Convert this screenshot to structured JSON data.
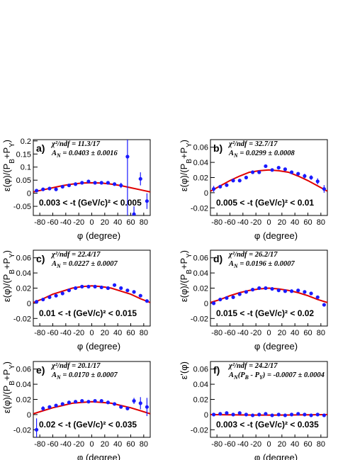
{
  "chart_data": [
    {
      "type": "scatter",
      "panel_label": "a)",
      "chi2_text": "χ²/ndf = 11.3/17",
      "fit_text": [
        "A",
        "N",
        " = 0.0403 ± 0.0016"
      ],
      "range_text": "0.003 < -t (GeV/c)² < 0.005",
      "ylabel": [
        "ε(φ)/(P",
        "B",
        "+P",
        "Y",
        ")"
      ],
      "xlabel": "φ (degree)",
      "xlim": [
        -90,
        90
      ],
      "xticks": [
        -80,
        -60,
        -40,
        -20,
        0,
        20,
        40,
        60,
        80
      ],
      "ylim": [
        -0.085,
        0.205
      ],
      "yticks": [
        -0.05,
        0,
        0.05,
        0.1,
        0.15,
        0.2
      ],
      "series": [
        {
          "color": "#1a1aff",
          "x": [
            -85,
            -75,
            -65,
            -55,
            -45,
            -35,
            -25,
            -15,
            -5,
            5,
            15,
            25,
            35,
            45,
            55,
            65,
            75,
            85
          ],
          "values": [
            0.01,
            0.015,
            0.018,
            0.015,
            0.025,
            0.03,
            0.035,
            0.04,
            0.045,
            0.04,
            0.04,
            0.04,
            0.035,
            0.03,
            0.14,
            -0.08,
            0.055,
            -0.03
          ],
          "errors": [
            0.004,
            0.003,
            0.003,
            0.003,
            0.003,
            0.003,
            0.003,
            0.003,
            0.003,
            0.003,
            0.003,
            0.003,
            0.004,
            0.01,
            0.23,
            0.03,
            0.025,
            0.03
          ]
        }
      ],
      "fit": {
        "color": "#e00000",
        "x": [
          -90,
          -75,
          -60,
          -45,
          -30,
          -15,
          0,
          15,
          30,
          45,
          60,
          75,
          90
        ],
        "values": [
          0.005,
          0.013,
          0.021,
          0.029,
          0.035,
          0.039,
          0.04,
          0.039,
          0.035,
          0.029,
          0.021,
          0.013,
          0.005
        ]
      }
    },
    {
      "type": "scatter",
      "panel_label": "b)",
      "chi2_text": "χ²/ndf = 32.7/17",
      "fit_text": [
        "A",
        "N",
        " = 0.0299 ± 0.0008"
      ],
      "range_text": "0.005 < -t (GeV/c)² < 0.01",
      "ylabel": [
        "ε(φ)/(P",
        "B",
        "+P",
        "Y",
        ")"
      ],
      "xlabel": "φ (degree)",
      "xlim": [
        -90,
        90
      ],
      "xticks": [
        -80,
        -60,
        -40,
        -20,
        0,
        20,
        40,
        60,
        80
      ],
      "ylim": [
        -0.03,
        0.07
      ],
      "yticks": [
        -0.02,
        0,
        0.02,
        0.04,
        0.06
      ],
      "series": [
        {
          "color": "#1a1aff",
          "x": [
            -85,
            -75,
            -65,
            -55,
            -45,
            -35,
            -25,
            -15,
            -5,
            5,
            15,
            25,
            35,
            45,
            55,
            65,
            75,
            85
          ],
          "values": [
            0.005,
            0.008,
            0.01,
            0.016,
            0.016,
            0.02,
            0.027,
            0.027,
            0.035,
            0.03,
            0.033,
            0.031,
            0.027,
            0.025,
            0.022,
            0.02,
            0.015,
            0.005
          ],
          "errors": [
            0.004,
            0.002,
            0.002,
            0.002,
            0.002,
            0.002,
            0.002,
            0.002,
            0.002,
            0.002,
            0.002,
            0.002,
            0.002,
            0.002,
            0.003,
            0.003,
            0.004,
            0.005
          ]
        }
      ],
      "fit": {
        "color": "#e00000",
        "x": [
          -90,
          -75,
          -60,
          -45,
          -30,
          -15,
          0,
          15,
          30,
          45,
          60,
          75,
          90
        ],
        "values": [
          0.002,
          0.009,
          0.016,
          0.022,
          0.027,
          0.029,
          0.03,
          0.029,
          0.027,
          0.022,
          0.016,
          0.009,
          0.002
        ]
      }
    },
    {
      "type": "scatter",
      "panel_label": "c)",
      "chi2_text": "χ²/ndf = 22.4/17",
      "fit_text": [
        "A",
        "N",
        " = 0.0227 ± 0.0007"
      ],
      "range_text": "0.01 < -t (GeV/c)² < 0.015",
      "ylabel": [
        "ε(φ)/(P",
        "B",
        "+P",
        "Y",
        ")"
      ],
      "xlabel": "φ (degree)",
      "xlim": [
        -90,
        90
      ],
      "xticks": [
        -80,
        -60,
        -40,
        -20,
        0,
        20,
        40,
        60,
        80
      ],
      "ylim": [
        -0.03,
        0.07
      ],
      "yticks": [
        -0.02,
        0,
        0.02,
        0.04,
        0.06
      ],
      "series": [
        {
          "color": "#1a1aff",
          "x": [
            -85,
            -75,
            -65,
            -55,
            -45,
            -35,
            -25,
            -15,
            -5,
            5,
            15,
            25,
            35,
            45,
            55,
            65,
            75,
            85
          ],
          "values": [
            0.002,
            0.005,
            0.008,
            0.01,
            0.013,
            0.017,
            0.02,
            0.022,
            0.022,
            0.022,
            0.021,
            0.02,
            0.024,
            0.02,
            0.017,
            0.015,
            0.01,
            0.003
          ],
          "errors": [
            0.002,
            0.0015,
            0.0015,
            0.0015,
            0.0015,
            0.0015,
            0.0015,
            0.0015,
            0.0015,
            0.0015,
            0.0015,
            0.0015,
            0.0015,
            0.0015,
            0.0015,
            0.0015,
            0.0015,
            0.002
          ]
        }
      ],
      "fit": {
        "color": "#e00000",
        "x": [
          -90,
          -75,
          -60,
          -45,
          -30,
          -15,
          0,
          15,
          30,
          45,
          60,
          75,
          90
        ],
        "values": [
          0.001,
          0.006,
          0.012,
          0.016,
          0.02,
          0.022,
          0.023,
          0.022,
          0.02,
          0.016,
          0.012,
          0.006,
          0.001
        ]
      }
    },
    {
      "type": "scatter",
      "panel_label": "d)",
      "chi2_text": "χ²/ndf = 26.2/17",
      "fit_text": [
        "A",
        "N",
        " = 0.0196 ± 0.0007"
      ],
      "range_text": "0.015 < -t (GeV/c)² < 0.02",
      "ylabel": [
        "ε(φ)/(P",
        "B",
        "+P",
        "Y",
        ")"
      ],
      "xlabel": "φ (degree)",
      "xlim": [
        -90,
        90
      ],
      "xticks": [
        -80,
        -60,
        -40,
        -20,
        0,
        20,
        40,
        60,
        80
      ],
      "ylim": [
        -0.03,
        0.07
      ],
      "yticks": [
        -0.02,
        0,
        0.02,
        0.04,
        0.06
      ],
      "series": [
        {
          "color": "#1a1aff",
          "x": [
            -85,
            -75,
            -65,
            -55,
            -45,
            -35,
            -25,
            -15,
            -5,
            5,
            15,
            25,
            35,
            45,
            55,
            65,
            75,
            85
          ],
          "values": [
            0.0,
            0.005,
            0.007,
            0.008,
            0.012,
            0.015,
            0.018,
            0.02,
            0.02,
            0.019,
            0.017,
            0.016,
            0.016,
            0.017,
            0.015,
            0.013,
            0.008,
            -0.002
          ],
          "errors": [
            0.002,
            0.0015,
            0.0015,
            0.0015,
            0.0015,
            0.0015,
            0.0015,
            0.0015,
            0.0015,
            0.0015,
            0.0015,
            0.0015,
            0.0015,
            0.0015,
            0.0015,
            0.0015,
            0.0015,
            0.002
          ]
        }
      ],
      "fit": {
        "color": "#e00000",
        "x": [
          -90,
          -75,
          -60,
          -45,
          -30,
          -15,
          0,
          15,
          30,
          45,
          60,
          75,
          90
        ],
        "values": [
          0.001,
          0.005,
          0.01,
          0.014,
          0.017,
          0.019,
          0.02,
          0.019,
          0.017,
          0.014,
          0.01,
          0.005,
          0.001
        ]
      }
    },
    {
      "type": "scatter",
      "panel_label": "e)",
      "chi2_text": "χ²/ndf = 20.1/17",
      "fit_text": [
        "A",
        "N",
        " = 0.0170 ± 0.0007"
      ],
      "range_text": "0.02 < -t (GeV/c)² < 0.035",
      "ylabel": [
        "ε(φ)/(P",
        "B",
        "+P",
        "Y",
        ")"
      ],
      "xlabel": "φ (degree)",
      "xlim": [
        -90,
        90
      ],
      "xticks": [
        -80,
        -60,
        -40,
        -20,
        0,
        20,
        40,
        60,
        80
      ],
      "ylim": [
        -0.03,
        0.07
      ],
      "yticks": [
        -0.02,
        0,
        0.02,
        0.04,
        0.06
      ],
      "series": [
        {
          "color": "#1a1aff",
          "x": [
            -85,
            -75,
            -65,
            -55,
            -45,
            -35,
            -25,
            -15,
            -5,
            5,
            15,
            25,
            35,
            45,
            55,
            65,
            75,
            85
          ],
          "values": [
            -0.02,
            0.008,
            0.01,
            0.012,
            0.014,
            0.016,
            0.017,
            0.018,
            0.017,
            0.018,
            0.018,
            0.016,
            0.014,
            0.01,
            0.008,
            0.018,
            0.015,
            0.01
          ],
          "errors": [
            0.015,
            0.003,
            0.002,
            0.0015,
            0.0015,
            0.0015,
            0.0015,
            0.0015,
            0.0015,
            0.0015,
            0.0015,
            0.0015,
            0.0015,
            0.002,
            0.002,
            0.004,
            0.008,
            0.012
          ]
        }
      ],
      "fit": {
        "color": "#e00000",
        "x": [
          -90,
          -75,
          -60,
          -45,
          -30,
          -15,
          0,
          15,
          30,
          45,
          60,
          75,
          90
        ],
        "values": [
          0.001,
          0.005,
          0.009,
          0.012,
          0.015,
          0.016,
          0.017,
          0.016,
          0.015,
          0.012,
          0.009,
          0.005,
          0.001
        ]
      }
    },
    {
      "type": "scatter",
      "panel_label": "f)",
      "chi2_text": "χ²/ndf = 24.2/17",
      "fit_text": [
        "A",
        "N",
        "(P",
        "B",
        " - P",
        "Y",
        ") = -0.0007 ± 0.0004"
      ],
      "range_text": "0.003 < -t (GeV/c)² < 0.035",
      "ylabel": [
        "ε'(φ)"
      ],
      "xlabel": "φ (degree)",
      "xlim": [
        -90,
        90
      ],
      "xticks": [
        -80,
        -60,
        -40,
        -20,
        0,
        20,
        40,
        60,
        80
      ],
      "ylim": [
        -0.03,
        0.07
      ],
      "yticks": [
        -0.02,
        0,
        0.02,
        0.04,
        0.06
      ],
      "series": [
        {
          "color": "#1a1aff",
          "x": [
            -85,
            -75,
            -65,
            -55,
            -45,
            -35,
            -25,
            -15,
            -5,
            5,
            15,
            25,
            35,
            45,
            55,
            65,
            75,
            85
          ],
          "values": [
            0.0,
            0.001,
            0.002,
            0.0,
            0.002,
            0.0,
            -0.001,
            0.0,
            0.001,
            -0.001,
            0.0,
            -0.001,
            0.0,
            0.001,
            0.0,
            -0.001,
            0.0,
            -0.001
          ],
          "errors": [
            0.001,
            0.001,
            0.001,
            0.001,
            0.001,
            0.001,
            0.001,
            0.001,
            0.001,
            0.001,
            0.001,
            0.001,
            0.001,
            0.001,
            0.001,
            0.001,
            0.001,
            0.001
          ]
        }
      ],
      "fit": {
        "color": "#e00000",
        "x": [
          -90,
          -75,
          -60,
          -45,
          -30,
          -15,
          0,
          15,
          30,
          45,
          60,
          75,
          90
        ],
        "values": [
          0,
          -0.0002,
          -0.0004,
          -0.0005,
          -0.0006,
          -0.0007,
          -0.0007,
          -0.0007,
          -0.0006,
          -0.0005,
          -0.0004,
          -0.0002,
          0
        ]
      }
    }
  ]
}
